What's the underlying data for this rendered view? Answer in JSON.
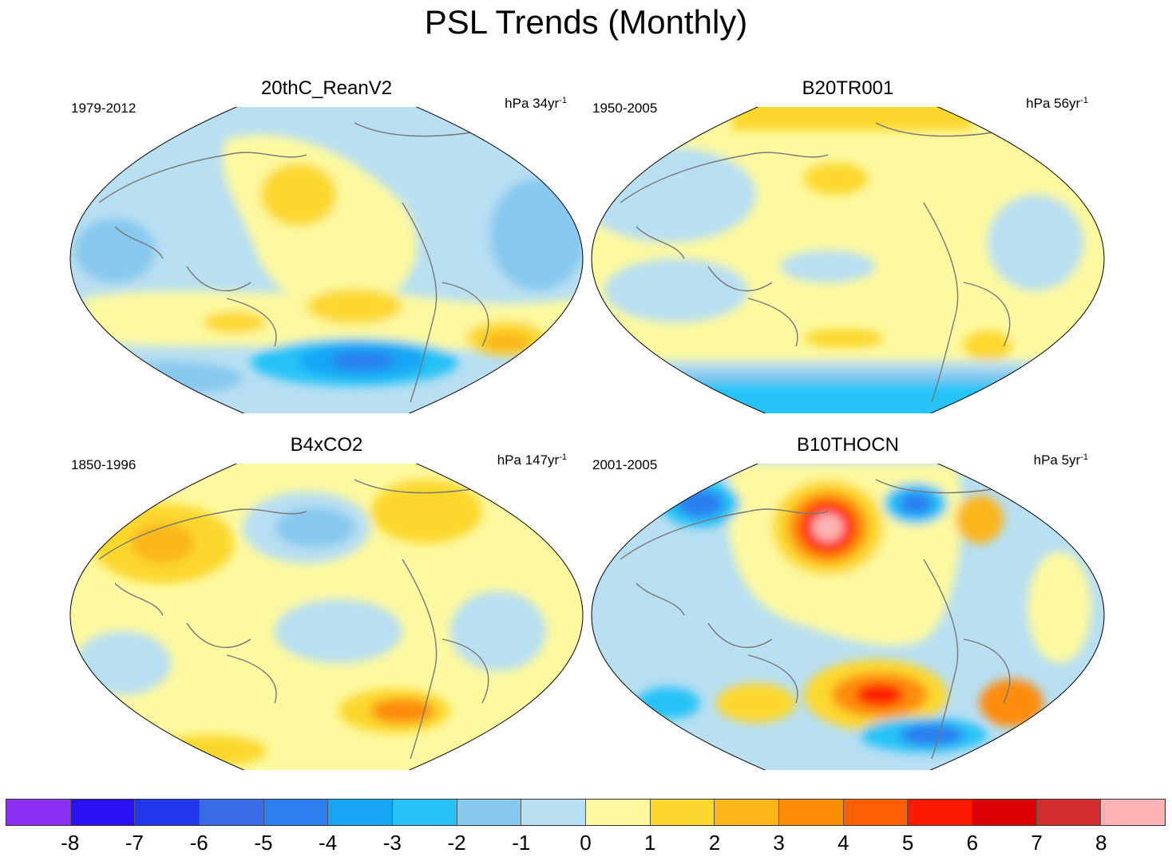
{
  "title": "PSL Trends (Monthly)",
  "panels": [
    {
      "name": "20thC_ReanV2",
      "period": "1979-2012",
      "units_prefix": "hPa 34yr",
      "units_exp": "-1"
    },
    {
      "name": "B20TR001",
      "period": "1950-2005",
      "units_prefix": "hPa 56yr",
      "units_exp": "-1"
    },
    {
      "name": "B4xCO2",
      "period": "1850-1996",
      "units_prefix": "hPa 147yr",
      "units_exp": "-1"
    },
    {
      "name": "B10THOCN",
      "period": "2001-2005",
      "units_prefix": "hPa 5yr",
      "units_exp": "-1"
    }
  ],
  "colorbar": {
    "labels": [
      "-8",
      "-7",
      "-6",
      "-5",
      "-4",
      "-3",
      "-2",
      "-1",
      "0",
      "1",
      "2",
      "3",
      "4",
      "5",
      "6",
      "7",
      "8"
    ],
    "colors": [
      "#8b2ff2",
      "#2b0ff5",
      "#1f35ee",
      "#3a6be6",
      "#2b7ff0",
      "#16a6f5",
      "#27c3f7",
      "#86c8ee",
      "#b8dff2",
      "#fdf9a0",
      "#fcd82f",
      "#fbb61a",
      "#fd8c07",
      "#fe5f05",
      "#fe1a00",
      "#db0005",
      "#d32c2f",
      "#fdb3b3"
    ]
  },
  "colors": {
    "coast": "#777777",
    "map_border": "#000000"
  }
}
